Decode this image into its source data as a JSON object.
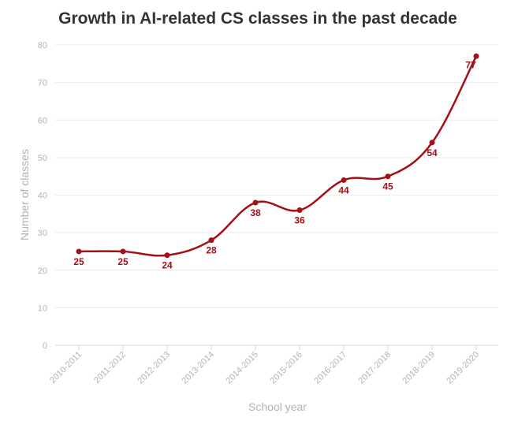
{
  "chart_data": {
    "type": "line",
    "title": "Growth in AI-related CS classes in the past decade",
    "xlabel": "School year",
    "ylabel": "Number of classes",
    "ylim": [
      0,
      80
    ],
    "yticks": [
      0,
      10,
      20,
      30,
      40,
      50,
      60,
      70,
      80
    ],
    "grid": true,
    "legend": "none",
    "color": "#a50f15",
    "categories": [
      "2010-2011",
      "2011-2012",
      "2012-2013",
      "2013-2014",
      "2014-2015",
      "2015-2016",
      "2016-2017",
      "2017-2018",
      "2018-2019",
      "2019-2020"
    ],
    "series": [
      {
        "values": [
          25,
          25,
          24,
          28,
          38,
          36,
          44,
          45,
          54,
          77
        ]
      }
    ]
  }
}
